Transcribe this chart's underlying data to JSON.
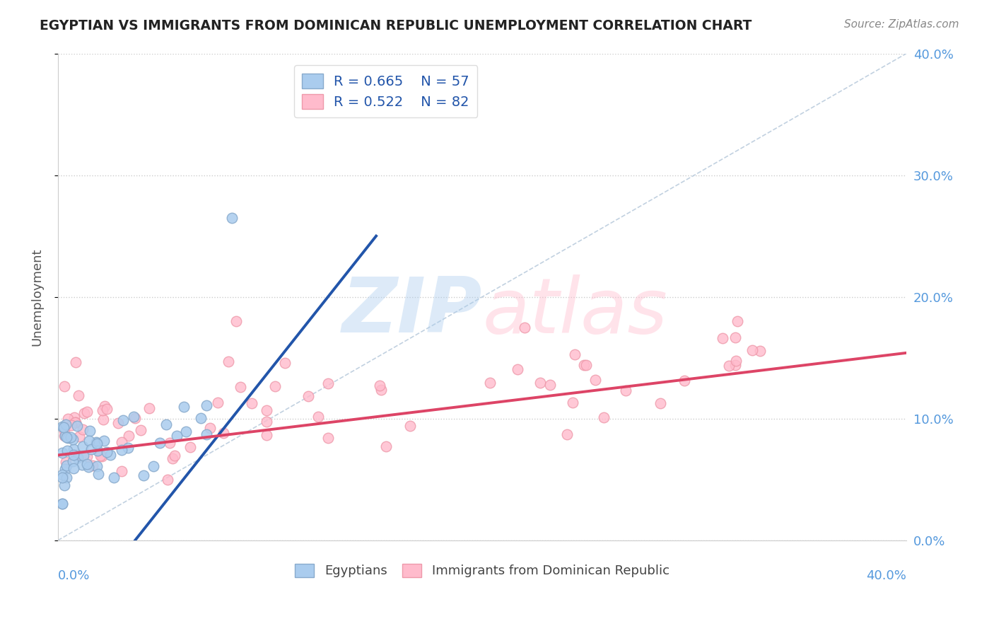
{
  "title": "EGYPTIAN VS IMMIGRANTS FROM DOMINICAN REPUBLIC UNEMPLOYMENT CORRELATION CHART",
  "source": "Source: ZipAtlas.com",
  "ylabel": "Unemployment",
  "xlim": [
    0,
    40
  ],
  "ylim": [
    0,
    40
  ],
  "y_tick_values": [
    0,
    10,
    20,
    30,
    40
  ],
  "y_tick_labels": [
    "0.0%",
    "10.0%",
    "20.0%",
    "30.0%",
    "40.0%"
  ],
  "blue_color_face": "#AACCEE",
  "blue_color_edge": "#88AACC",
  "pink_color_face": "#FFBBCC",
  "pink_color_edge": "#EE99AA",
  "blue_line_color": "#2255AA",
  "pink_line_color": "#DD4466",
  "ref_line_color": "#BBCCDD",
  "watermark_zip_color": "#AACCEE",
  "watermark_atlas_color": "#FFBBCC",
  "tick_color": "#5599DD",
  "title_color": "#222222",
  "source_color": "#888888",
  "blue_line_intercept": -8.0,
  "blue_line_slope": 2.2,
  "pink_line_intercept": 7.0,
  "pink_line_slope": 0.21,
  "blue_outlier_x": 8.2,
  "blue_outlier_y": 26.5,
  "marker_size": 110
}
